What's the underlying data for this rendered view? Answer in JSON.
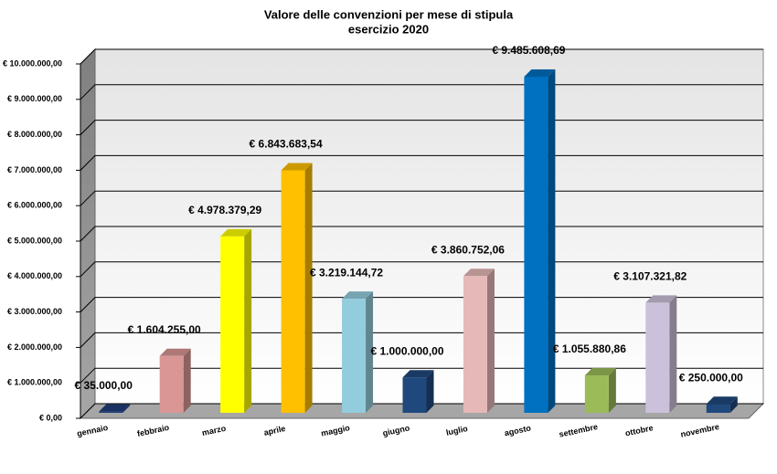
{
  "chart_data": {
    "type": "bar3d",
    "title": "Valore delle convenzioni per mese di stipula",
    "subtitle": "esercizio 2020",
    "categories": [
      "gennaio",
      "febbraio",
      "marzo",
      "aprile",
      "maggio",
      "giugno",
      "luglio",
      "agosto",
      "settembre",
      "ottobre",
      "novembre"
    ],
    "values": [
      35000,
      1604255,
      4978379.29,
      6843683.54,
      3219144.72,
      1000000,
      3860752.06,
      9485608.69,
      1055880.86,
      3107321.82,
      250000
    ],
    "value_labels": [
      "€ 35.000,00",
      "€ 1.604.255,00",
      "€ 4.978.379,29",
      "€ 6.843.683,54",
      "€ 3.219.144,72",
      "€ 1.000.000,00",
      "€ 3.860.752,06",
      "€ 9.485.608,69",
      "€ 1.055.880,86",
      "€ 3.107.321,82",
      "€ 250.000,00"
    ],
    "colors": [
      "#1f3f7a",
      "#d99694",
      "#ffff00",
      "#ffc000",
      "#93cddd",
      "#1f497d",
      "#e6b9b8",
      "#0070c0",
      "#9bbb59",
      "#ccc1da",
      "#1f497d"
    ],
    "ylim": [
      0,
      10000000
    ],
    "yticks": [
      {
        "value": 0,
        "label": "€ 0,00"
      },
      {
        "value": 1000000,
        "label": "€ 1.000.000,00"
      },
      {
        "value": 2000000,
        "label": "€ 2.000.000,00"
      },
      {
        "value": 3000000,
        "label": "€ 3.000.000,00"
      },
      {
        "value": 4000000,
        "label": "€ 4.000.000,00"
      },
      {
        "value": 5000000,
        "label": "€ 5.000.000,00"
      },
      {
        "value": 6000000,
        "label": "€ 6.000.000,00"
      },
      {
        "value": 7000000,
        "label": "€ 7.000.000,00"
      },
      {
        "value": 8000000,
        "label": "€ 8.000.000,00"
      },
      {
        "value": 9000000,
        "label": "€ 9.000.000,00"
      },
      {
        "value": 10000000,
        "label": "€ 10.000.000,00"
      }
    ],
    "grid": true
  }
}
